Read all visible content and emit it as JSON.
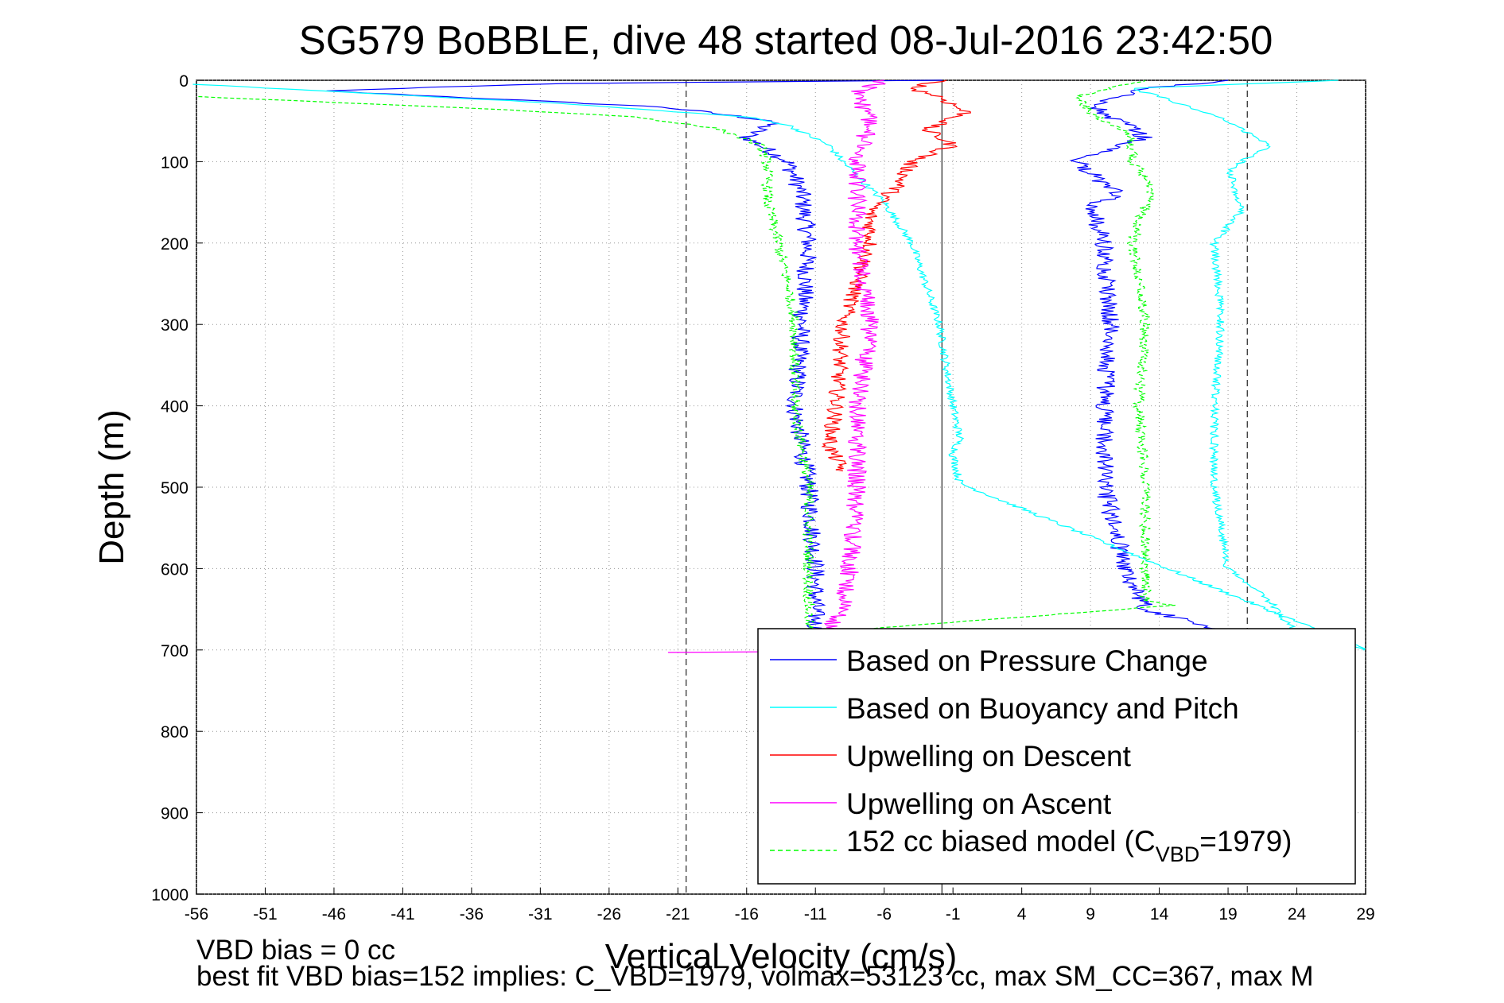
{
  "chart_data": {
    "type": "line",
    "title": "SG579 BoBBLE, dive 48 started 08-Jul-2016 23:42:50",
    "xlabel": "Vertical Velocity (cm/s)",
    "ylabel": "Depth (m)",
    "xlim": [
      -56,
      29
    ],
    "ylim": [
      0,
      1000
    ],
    "y_reversed": true,
    "grid": true,
    "xticks": [
      -56,
      -51,
      -46,
      -41,
      -36,
      -31,
      -26,
      -21,
      -16,
      -11,
      -6,
      -1,
      4,
      9,
      14,
      19,
      24,
      29
    ],
    "yticks": [
      0,
      100,
      200,
      300,
      400,
      500,
      600,
      700,
      800,
      900,
      1000
    ],
    "reference_lines": [
      {
        "style": "solid",
        "x": -1.8
      },
      {
        "style": "dashed",
        "x": -20.4
      },
      {
        "style": "dashed",
        "x": 20.4
      }
    ],
    "legend": {
      "position": "bottom-right",
      "entries": [
        {
          "label": "Based on Pressure Change",
          "color": "#0000ff"
        },
        {
          "label": "Based on Buoyancy and Pitch",
          "color": "#00ffff"
        },
        {
          "label": "Upwelling on Descent",
          "color": "#ff0000"
        },
        {
          "label": "Upwelling on Ascent",
          "color": "#ff00ff"
        },
        {
          "label_prefix": "152 cc biased model (C",
          "label_sub": "VBD",
          "label_suffix": "=1979)",
          "color": "#00ff00",
          "dashed": true
        }
      ]
    },
    "series": [
      {
        "name": "Based on Pressure Change",
        "color": "#0000ff",
        "jitter": 0.7,
        "points": [
          [
            -2,
            0
          ],
          [
            -30,
            4
          ],
          [
            -47,
            13
          ],
          [
            -38,
            20
          ],
          [
            -22,
            33
          ],
          [
            -14,
            50
          ],
          [
            -16,
            70
          ],
          [
            -13,
            100
          ],
          [
            -12,
            140
          ],
          [
            -11.5,
            200
          ],
          [
            -12,
            300
          ],
          [
            -12.5,
            400
          ],
          [
            -11.5,
            500
          ],
          [
            -11,
            600
          ],
          [
            -11,
            700
          ],
          [
            22,
            690
          ],
          [
            13,
            650
          ],
          [
            11.5,
            600
          ],
          [
            10,
            500
          ],
          [
            10,
            400
          ],
          [
            10.5,
            300
          ],
          [
            10,
            200
          ],
          [
            9,
            155
          ],
          [
            11,
            140
          ],
          [
            8,
            100
          ],
          [
            13,
            70
          ],
          [
            9,
            30
          ],
          [
            13,
            10
          ],
          [
            19,
            0
          ]
        ]
      },
      {
        "name": "Based on Buoyancy and Pitch",
        "color": "#00ffff",
        "jitter": 0.3,
        "points": [
          [
            -56,
            5
          ],
          [
            -30,
            28
          ],
          [
            -16,
            45
          ],
          [
            -13,
            55
          ],
          [
            -10,
            80
          ],
          [
            -9,
            100
          ],
          [
            -6,
            150
          ],
          [
            -4,
            200
          ],
          [
            -2,
            300
          ],
          [
            -1,
            400
          ],
          [
            -0.5,
            440
          ],
          [
            -1,
            460
          ],
          [
            -0.5,
            495
          ],
          [
            29,
            700
          ],
          [
            24,
            680
          ],
          [
            22,
            640
          ],
          [
            19,
            600
          ],
          [
            18,
            500
          ],
          [
            18,
            400
          ],
          [
            18.5,
            300
          ],
          [
            18,
            200
          ],
          [
            20,
            160
          ],
          [
            19.5,
            130
          ],
          [
            19,
            110
          ],
          [
            22,
            80
          ],
          [
            19,
            50
          ],
          [
            14,
            20
          ],
          [
            12,
            10
          ],
          [
            27,
            0
          ]
        ]
      },
      {
        "name": "Upwelling on Descent",
        "color": "#ff0000",
        "jitter": 0.6,
        "points": [
          [
            -1.8,
            0
          ],
          [
            -4,
            10
          ],
          [
            -2,
            20
          ],
          [
            0,
            40
          ],
          [
            -3,
            60
          ],
          [
            -1,
            80
          ],
          [
            -4,
            100
          ],
          [
            -5,
            130
          ],
          [
            -7,
            160
          ],
          [
            -7,
            200
          ],
          [
            -8,
            250
          ],
          [
            -9,
            300
          ],
          [
            -9.5,
            400
          ],
          [
            -10,
            450
          ],
          [
            -9,
            480
          ]
        ]
      },
      {
        "name": "Upwelling on Ascent",
        "color": "#ff00ff",
        "jitter": 0.7,
        "points": [
          [
            -22,
            703
          ],
          [
            -13,
            702
          ],
          [
            -12,
            699
          ],
          [
            -11,
            690
          ],
          [
            -9,
            650
          ],
          [
            -8.5,
            600
          ],
          [
            -8,
            500
          ],
          [
            -8,
            400
          ],
          [
            -7,
            300
          ],
          [
            -8,
            200
          ],
          [
            -8,
            100
          ],
          [
            -7,
            50
          ],
          [
            -8,
            15
          ],
          [
            -6,
            0
          ]
        ]
      },
      {
        "name": "152 cc biased model (C VBD=1979)",
        "color": "#00ff00",
        "dashed": true,
        "jitter": 0.4,
        "points": [
          [
            -56,
            20
          ],
          [
            -35,
            35
          ],
          [
            -24,
            45
          ],
          [
            -18,
            60
          ],
          [
            -15,
            80
          ],
          [
            -14.5,
            100
          ],
          [
            -14.5,
            150
          ],
          [
            -14,
            180
          ],
          [
            -13,
            250
          ],
          [
            -12.5,
            300
          ],
          [
            -12.5,
            400
          ],
          [
            -12,
            450
          ],
          [
            -11.5,
            500
          ],
          [
            -11.5,
            600
          ],
          [
            -11.5,
            680
          ],
          [
            15,
            645
          ],
          [
            13,
            640
          ],
          [
            13,
            600
          ],
          [
            13,
            500
          ],
          [
            12.5,
            400
          ],
          [
            13,
            300
          ],
          [
            12,
            200
          ],
          [
            13.5,
            130
          ],
          [
            12,
            100
          ],
          [
            12,
            70
          ],
          [
            9,
            40
          ],
          [
            8,
            20
          ],
          [
            13,
            0
          ]
        ]
      }
    ]
  },
  "footer": {
    "line1": "VBD bias = 0 cc",
    "line2": "best fit VBD bias=152 implies: C_VBD=1979, volmax=53123 cc, max SM_CC=367, max M"
  }
}
